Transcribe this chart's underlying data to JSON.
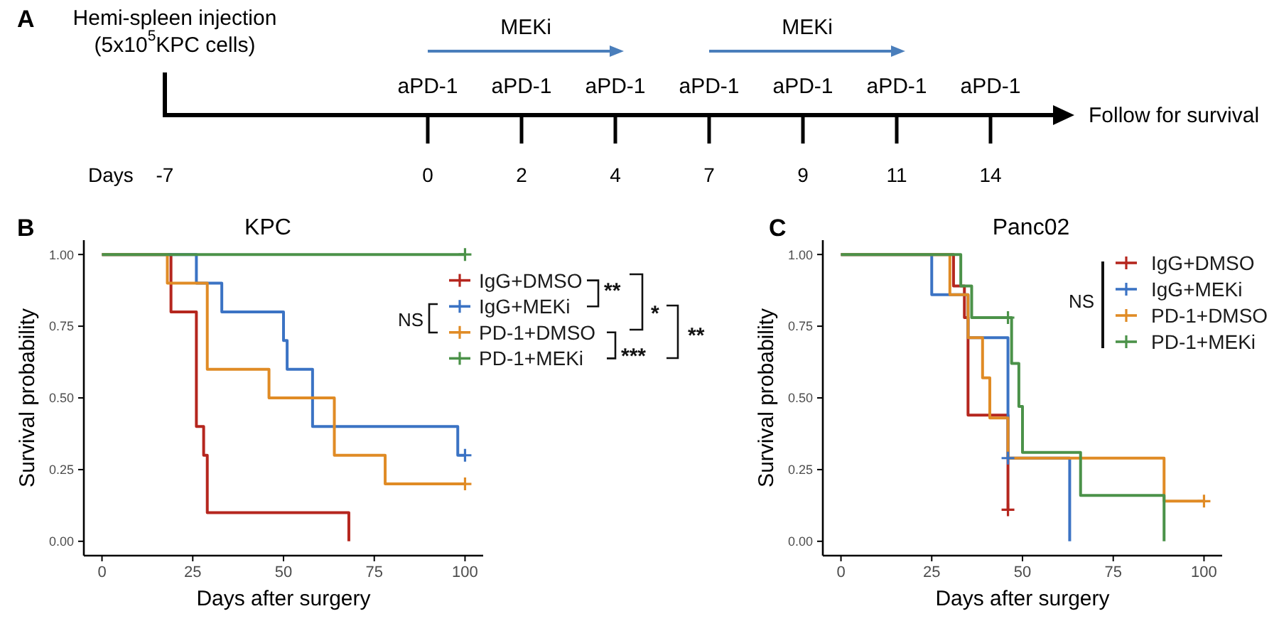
{
  "chart_data": [
    {
      "type": "other",
      "xlabel": "Days",
      "categories": [
        "-7",
        "0",
        "2",
        "4",
        "7",
        "9",
        "11",
        "14"
      ],
      "annotations": [
        "A",
        "Follow for survival",
        {
          "text": "Hemi-spleen injection",
          "x": "-7"
        },
        {
          "text": "(5x10$^{5}$KPC cells)",
          "x": "-7"
        },
        {
          "text": "MEKi",
          "x": "2"
        },
        {
          "text": "MEKi",
          "x": "9"
        },
        {
          "text": "aPD-1",
          "x": "0"
        },
        {
          "text": "aPD-1",
          "x": "2"
        },
        {
          "text": "aPD-1",
          "x": "4"
        },
        {
          "text": "aPD-1",
          "x": "7"
        },
        {
          "text": "aPD-1",
          "x": "9"
        },
        {
          "text": "aPD-1",
          "x": "11"
        },
        {
          "text": "aPD-1",
          "x": "14"
        }
      ]
    },
    {
      "type": "step",
      "title": "KPC",
      "xlabel": "Days after surgery",
      "ylabel": "Survival probability",
      "xlim": [
        -5,
        105
      ],
      "xticks": [
        0,
        25,
        50,
        75,
        100
      ],
      "ylim": [
        -0.05,
        1.05
      ],
      "yticks": [
        {
          "value": 0,
          "label": "0.00"
        },
        {
          "value": 0.25,
          "label": "0.25"
        },
        {
          "value": 0.5,
          "label": "0.50"
        },
        {
          "value": 0.75,
          "label": "0.75"
        },
        {
          "value": 1,
          "label": "1.00"
        }
      ],
      "legend": "top right",
      "annotations": [
        "B",
        "NS",
        "**",
        "*",
        "***",
        "**"
      ],
      "series": [
        {
          "name": "IgG+DMSO",
          "color": "#b5261e",
          "x": [
            0,
            19,
            26,
            28,
            29,
            68
          ],
          "values": [
            1,
            0.8,
            0.4,
            0.3,
            0.1,
            0
          ]
        },
        {
          "name": "IgG+MEKi",
          "color": "#3b73c4",
          "x": [
            0,
            26,
            33,
            50,
            51,
            58,
            98,
            100
          ],
          "values": [
            1,
            0.9,
            0.8,
            0.7,
            0.6,
            0.4,
            0.3,
            0.3
          ]
        },
        {
          "name": "PD-1+DMSO",
          "color": "#e08b25",
          "x": [
            0,
            18,
            29,
            46,
            64,
            78,
            100
          ],
          "values": [
            1,
            0.9,
            0.6,
            0.5,
            0.3,
            0.2,
            0.2
          ]
        },
        {
          "name": "PD-1+MEKi",
          "color": "#4b9249",
          "x": [
            0,
            100
          ],
          "values": [
            1,
            1
          ]
        },
        {
          "type": "scatter",
          "marker": "cross",
          "color": "#3b73c4",
          "x": [
            100
          ],
          "values": [
            0.3
          ]
        },
        {
          "type": "scatter",
          "marker": "cross",
          "color": "#e08b25",
          "x": [
            100
          ],
          "values": [
            0.2
          ]
        },
        {
          "type": "scatter",
          "marker": "cross",
          "color": "#4b9249",
          "x": [
            100
          ],
          "values": [
            1
          ]
        }
      ]
    },
    {
      "type": "step",
      "title": "Panc02",
      "xlabel": "Days after surgery",
      "ylabel": "Survival probability",
      "xlim": [
        -5,
        105
      ],
      "xticks": [
        0,
        25,
        50,
        75,
        100
      ],
      "ylim": [
        -0.05,
        1.05
      ],
      "yticks": [
        {
          "value": 0,
          "label": "0.00"
        },
        {
          "value": 0.25,
          "label": "0.25"
        },
        {
          "value": 0.5,
          "label": "0.50"
        },
        {
          "value": 0.75,
          "label": "0.75"
        },
        {
          "value": 1,
          "label": "1.00"
        }
      ],
      "legend": "top right",
      "annotations": [
        "C",
        "NS"
      ],
      "series": [
        {
          "name": "IgG+DMSO",
          "color": "#b5261e",
          "x": [
            0,
            31,
            34,
            35,
            46
          ],
          "values": [
            1,
            0.89,
            0.78,
            0.44,
            0.11
          ]
        },
        {
          "name": "IgG+MEKi",
          "color": "#3b73c4",
          "x": [
            0,
            25,
            35,
            46,
            63
          ],
          "values": [
            1,
            0.86,
            0.71,
            0.29,
            0
          ]
        },
        {
          "name": "PD-1+DMSO",
          "color": "#e08b25",
          "x": [
            0,
            30,
            35,
            39,
            41,
            46,
            89,
            100
          ],
          "values": [
            1,
            0.86,
            0.71,
            0.57,
            0.43,
            0.29,
            0.14,
            0.14
          ]
        },
        {
          "name": "PD-1+MEKi",
          "color": "#4b9249",
          "x": [
            0,
            33,
            36,
            47,
            49,
            50,
            66,
            89
          ],
          "values": [
            1,
            0.89,
            0.78,
            0.62,
            0.47,
            0.31,
            0.16,
            0
          ]
        },
        {
          "type": "scatter",
          "marker": "cross",
          "color": "#b5261e",
          "x": [
            46
          ],
          "values": [
            0.11
          ]
        },
        {
          "type": "scatter",
          "marker": "cross",
          "color": "#3b73c4",
          "x": [
            46
          ],
          "values": [
            0.29
          ]
        },
        {
          "type": "scatter",
          "marker": "cross",
          "color": "#e08b25",
          "x": [
            100
          ],
          "values": [
            0.14
          ]
        },
        {
          "type": "scatter",
          "marker": "cross",
          "color": "#4b9249",
          "x": [
            46
          ],
          "values": [
            0.78
          ]
        }
      ]
    }
  ]
}
